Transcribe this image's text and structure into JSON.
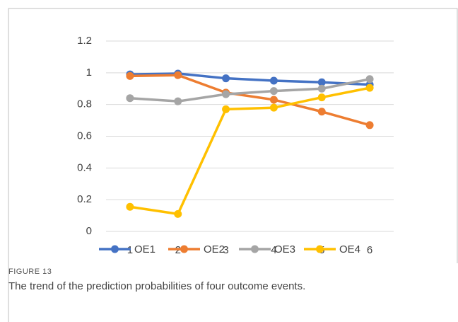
{
  "chart_data": {
    "type": "line",
    "categories": [
      "1",
      "2",
      "3",
      "4",
      "5",
      "6"
    ],
    "series": [
      {
        "name": "OE1",
        "color": "#4472c4",
        "values": [
          0.99,
          0.995,
          0.965,
          0.95,
          0.94,
          0.925
        ]
      },
      {
        "name": "OE2",
        "color": "#ed7d31",
        "values": [
          0.98,
          0.985,
          0.875,
          0.83,
          0.755,
          0.67
        ]
      },
      {
        "name": "OE3",
        "color": "#a5a5a5",
        "values": [
          0.84,
          0.82,
          0.865,
          0.885,
          0.9,
          0.96
        ]
      },
      {
        "name": "OE4",
        "color": "#ffc000",
        "values": [
          0.155,
          0.11,
          0.77,
          0.78,
          0.845,
          0.905
        ]
      }
    ],
    "ylim": [
      0,
      1.2
    ],
    "yticks": [
      0,
      0.2,
      0.4,
      0.6,
      0.8,
      1,
      1.2
    ],
    "grid": true
  },
  "figure": {
    "label": "FIGURE 13",
    "caption": "The trend of the prediction probabilities of four outcome events."
  }
}
